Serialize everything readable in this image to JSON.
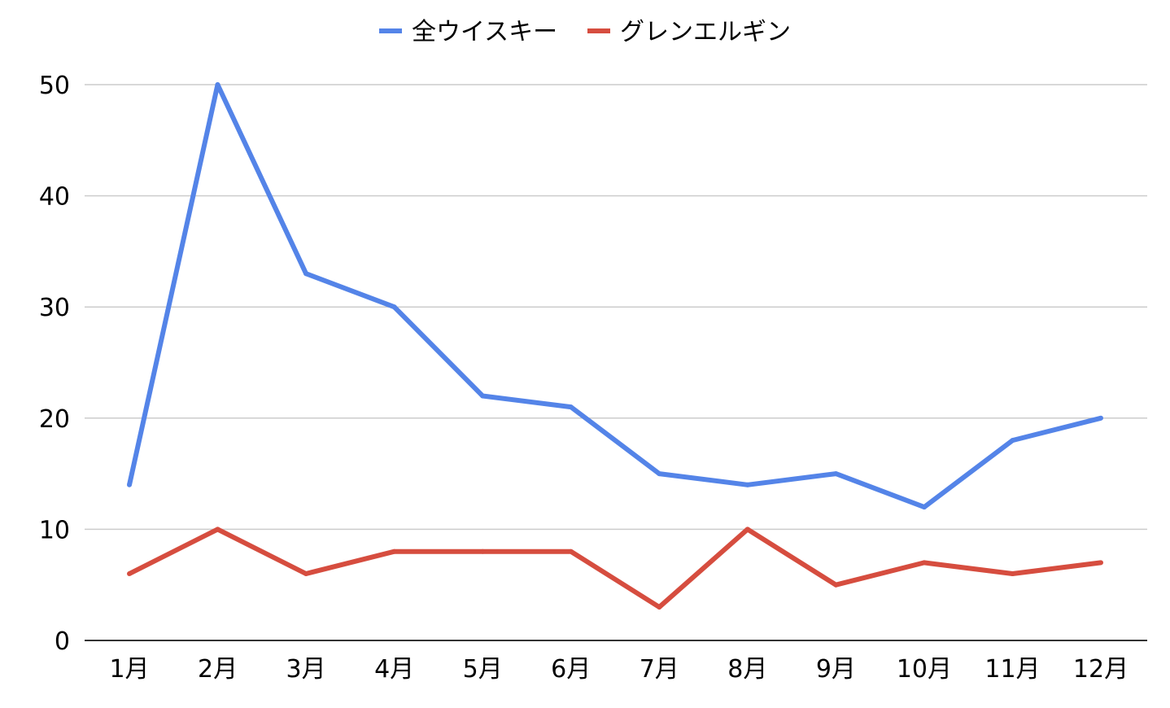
{
  "chart_data": {
    "type": "line",
    "title": "",
    "xlabel": "",
    "ylabel": "",
    "categories": [
      "1月",
      "2月",
      "3月",
      "4月",
      "5月",
      "6月",
      "7月",
      "8月",
      "9月",
      "10月",
      "11月",
      "12月"
    ],
    "ylim": [
      0,
      50
    ],
    "yticks": [
      "0",
      "10",
      "20",
      "30",
      "40",
      "50"
    ],
    "grid": true,
    "legend_position": "top-center",
    "series": [
      {
        "name": "全ウイスキー",
        "color": "#5484e8",
        "values": [
          14,
          50,
          33,
          30,
          22,
          21,
          15,
          14,
          15,
          12,
          18,
          20
        ]
      },
      {
        "name": "グレンエルギン",
        "color": "#d64d3f",
        "values": [
          6,
          10,
          6,
          8,
          8,
          8,
          3,
          10,
          5,
          7,
          6,
          7
        ]
      }
    ]
  }
}
